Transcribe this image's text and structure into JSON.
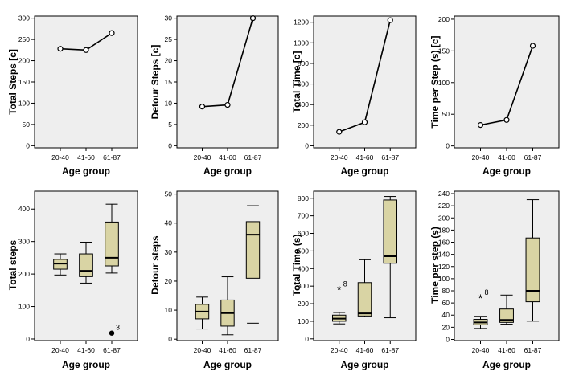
{
  "chart_data": [
    {
      "type": "line",
      "categories": [
        "20-40",
        "41-60",
        "61-87"
      ],
      "values": [
        228,
        225,
        265
      ],
      "xlabel": "Age group",
      "ylabel": "Total Steps [c]",
      "ylim": [
        -5,
        305
      ],
      "yticks": [
        0,
        50,
        100,
        150,
        200,
        250,
        300
      ],
      "grid": false
    },
    {
      "type": "line",
      "categories": [
        "20-40",
        "41-60",
        "61-87"
      ],
      "values": [
        9.2,
        9.6,
        30
      ],
      "xlabel": "Age group",
      "ylabel": "Detour Steps [c]",
      "ylim": [
        -0.5,
        30.5
      ],
      "yticks": [
        0,
        5,
        10,
        15,
        20,
        25,
        30
      ],
      "grid": false
    },
    {
      "type": "line",
      "categories": [
        "20-40",
        "41-60",
        "61-87"
      ],
      "values": [
        135,
        228,
        1220
      ],
      "xlabel": "Age group",
      "ylabel": "Total Time [c]",
      "ylim": [
        -20,
        1260
      ],
      "yticks": [
        0,
        200,
        400,
        600,
        800,
        1000,
        1200
      ],
      "grid": false
    },
    {
      "type": "line",
      "categories": [
        "20-40",
        "41-60",
        "61-87"
      ],
      "values": [
        33,
        41,
        158
      ],
      "xlabel": "Age group",
      "ylabel": "Time per Step (s) [c]",
      "ylim": [
        -3,
        205
      ],
      "yticks": [
        0,
        50,
        100,
        150,
        200
      ],
      "grid": false
    },
    {
      "type": "box",
      "categories": [
        "20-40",
        "41-60",
        "61-87"
      ],
      "boxes": [
        {
          "whislo": 197,
          "q1": 215,
          "med": 232,
          "q3": 245,
          "whishi": 262
        },
        {
          "whislo": 172,
          "q1": 192,
          "med": 210,
          "q3": 262,
          "whishi": 298
        },
        {
          "whislo": 203,
          "q1": 225,
          "med": 250,
          "q3": 360,
          "whishi": 415
        }
      ],
      "outliers": [
        {
          "category": "61-87",
          "value": 18,
          "marker": "dot",
          "label": "3"
        }
      ],
      "xlabel": "Age group",
      "ylabel": "Total steps",
      "ylim": [
        -5,
        455
      ],
      "yticks": [
        0,
        100,
        200,
        300,
        400
      ],
      "grid": false
    },
    {
      "type": "box",
      "categories": [
        "20-40",
        "41-60",
        "61-87"
      ],
      "boxes": [
        {
          "whislo": 3.5,
          "q1": 7,
          "med": 9.5,
          "q3": 12,
          "whishi": 14.5
        },
        {
          "whislo": 1.5,
          "q1": 4.5,
          "med": 9,
          "q3": 13.5,
          "whishi": 21.5
        },
        {
          "whislo": 5.5,
          "q1": 21,
          "med": 36,
          "q3": 40.5,
          "whishi": 46
        }
      ],
      "outliers": [],
      "xlabel": "Age group",
      "ylabel": "Detour steps",
      "ylim": [
        -0.5,
        51
      ],
      "yticks": [
        0,
        10,
        20,
        30,
        40,
        50
      ],
      "grid": false
    },
    {
      "type": "box",
      "categories": [
        "20-40",
        "41-60",
        "61-87"
      ],
      "boxes": [
        {
          "whislo": 85,
          "q1": 100,
          "med": 115,
          "q3": 135,
          "whishi": 150
        },
        {
          "whislo": 125,
          "q1": 130,
          "med": 145,
          "q3": 320,
          "whishi": 450
        },
        {
          "whislo": 120,
          "q1": 430,
          "med": 470,
          "q3": 790,
          "whishi": 810
        }
      ],
      "outliers": [
        {
          "category": "20-40",
          "value": 280,
          "marker": "star",
          "label": "8"
        }
      ],
      "xlabel": "Age group",
      "ylabel": "Total Time (s)",
      "ylim": [
        -10,
        840
      ],
      "yticks": [
        0,
        100,
        200,
        300,
        400,
        500,
        600,
        700,
        800
      ],
      "grid": false
    },
    {
      "type": "box",
      "categories": [
        "20-40",
        "41-60",
        "61-87"
      ],
      "boxes": [
        {
          "whislo": 18,
          "q1": 24,
          "med": 28,
          "q3": 33,
          "whishi": 38
        },
        {
          "whislo": 25,
          "q1": 28,
          "med": 32,
          "q3": 50,
          "whishi": 73
        },
        {
          "whislo": 30,
          "q1": 62,
          "med": 80,
          "q3": 167,
          "whishi": 230
        }
      ],
      "outliers": [
        {
          "category": "20-40",
          "value": 68,
          "marker": "star",
          "label": "8"
        }
      ],
      "xlabel": "Age group",
      "ylabel": "Time per step (s)",
      "ylim": [
        -2,
        244
      ],
      "yticks": [
        0,
        20,
        40,
        60,
        80,
        100,
        120,
        140,
        160,
        180,
        200,
        220,
        240
      ],
      "grid": false
    }
  ],
  "colors": {
    "plot_background": "#eeeeee",
    "box_fill": "#d9d4a4",
    "line": "#000000"
  }
}
